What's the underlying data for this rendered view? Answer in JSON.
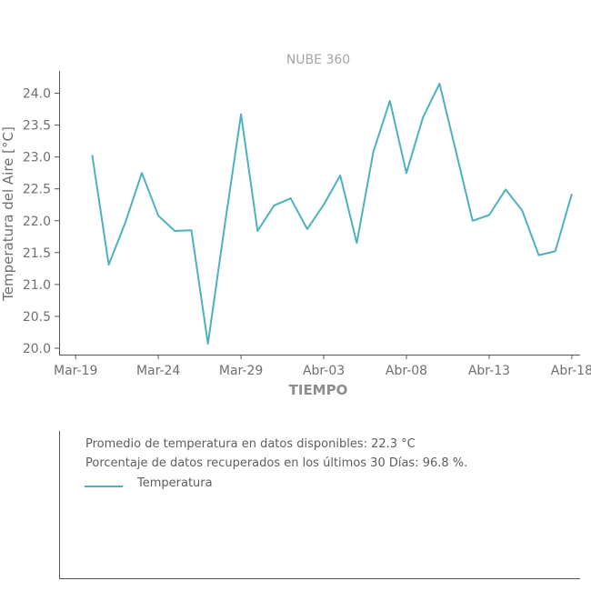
{
  "colors": {
    "series": "#4eb1bf",
    "axis": "#555555",
    "text": "#6f6f6f"
  },
  "chart_data": {
    "type": "line",
    "title": "NUBE 360",
    "xlabel": "TIEMPO",
    "ylabel": "Temperatura del Aire [°C]",
    "xlim": [
      -1.0,
      30.5
    ],
    "ylim": [
      19.9,
      24.35
    ],
    "yticks": [
      20.0,
      20.5,
      21.0,
      21.5,
      22.0,
      22.5,
      23.0,
      23.5,
      24.0
    ],
    "ytick_labels": [
      "20.0",
      "20.5",
      "21.0",
      "21.5",
      "22.0",
      "22.5",
      "23.0",
      "23.5",
      "24.0"
    ],
    "xticks": [
      0,
      5,
      10,
      15,
      20,
      25,
      30
    ],
    "xtick_labels": [
      "Mar-19",
      "Mar-24",
      "Mar-29",
      "Abr-03",
      "Abr-08",
      "Abr-13",
      "Abr-18"
    ],
    "grid": false,
    "legend_position": "bottom-panel",
    "series": [
      {
        "name": "Temperatura",
        "x": [
          1,
          2,
          3,
          4,
          5,
          6,
          7,
          8,
          9,
          10,
          11,
          12,
          13,
          14,
          15,
          16,
          17,
          18,
          19,
          20,
          21,
          22,
          23,
          24,
          25,
          26,
          27,
          28,
          29,
          30
        ],
        "values": [
          23.03,
          21.31,
          21.97,
          22.75,
          22.08,
          21.84,
          21.85,
          20.07,
          21.9,
          23.67,
          21.84,
          22.24,
          22.35,
          21.87,
          22.25,
          22.71,
          21.65,
          23.08,
          23.88,
          22.75,
          23.62,
          24.15,
          23.08,
          22.0,
          22.09,
          22.49,
          22.16,
          21.46,
          21.52,
          22.42
        ]
      }
    ]
  },
  "info": {
    "avg_text": "Promedio de temperatura en datos disponibles: 22.3 °C",
    "pct_text": "Porcentaje de datos recuperados en los últimos 30 Días: 96.8 %.",
    "legend_label": "Temperatura"
  }
}
